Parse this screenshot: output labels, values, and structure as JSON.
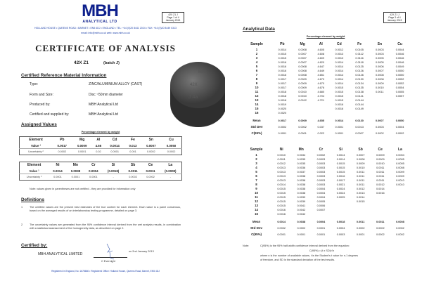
{
  "left": {
    "logo": {
      "name": "MBH",
      "sub": "ANALYTICAL LTD",
      "mark": "®"
    },
    "ref_box": [
      "42X Z1 J",
      "Page 1 of 4",
      "January 2013"
    ],
    "address": "HOLLAND HOUSE • QUEENS ROAD • BARNET • EN5 4DJ • ENGLAND • TEL: +44 (0)20 8441 2024 • FAX: +44 (0)20 8449 0313",
    "contact": "email: info@mbh.co.uk   web: www.mbh.co.uk",
    "title": "CERTIFICATE  OF  ANALYSIS",
    "material": "42X Z1",
    "batch": "(batch J)",
    "crm_heading": "Certified Reference Material Information",
    "info": [
      {
        "label": "Type:",
        "value": "ZINC/ALUMINIUM ALLOY     (CAST)"
      },
      {
        "label": "Form and Size:",
        "value": "Disc ~50mm diameter"
      },
      {
        "label": "Produced by:",
        "value": "MBH Analytical Ltd"
      },
      {
        "label": "Certified and supplied by:",
        "value": "MBH Analytical Ltd"
      }
    ],
    "disc_text": [
      "MBH",
      "42X",
      "J 4a"
    ],
    "assigned_heading": "Assigned Values",
    "pct_caption": "Percentage element by weight",
    "table1": [
      [
        "Element",
        "Pb",
        "Mg",
        "Al",
        "Cd",
        "Fe",
        "Sn",
        "Cu"
      ],
      [
        "Value ¹",
        "0.0017",
        "0.0009",
        "4.66",
        "0.0014",
        "0.013",
        "0.0007",
        "0.0050"
      ],
      [
        "Uncertainty ²",
        "0.0002",
        "0.0001",
        "0.02",
        "0.0001",
        "0.001",
        "0.0002",
        "0.0002"
      ]
    ],
    "table2": [
      [
        "Element",
        "Ni",
        "Mn",
        "Cr",
        "Si",
        "Sb",
        "Ce",
        "La"
      ],
      [
        "Value ¹",
        "0.0014",
        "0.0038",
        "0.0004",
        "(0.0018)",
        "0.0011",
        "0.0011",
        "(0.0008)"
      ],
      [
        "Uncertainty ²",
        "0.0001",
        "0.0001",
        "0.0001",
        "-",
        "0.0002",
        "0.0002",
        "-"
      ]
    ],
    "note": "Note:  values given in parentheses are not certified - they are provided for information only",
    "definitions_heading": "Definitions",
    "definitions": [
      {
        "mark": "1",
        "text": "The certified values are the present best estimates of the true content for each element.  Each value is a panel consensus, based on the averaged results of an interlaboratory testing programme, detailed on page 3."
      },
      {
        "mark": "2",
        "text": "The uncertainty values are generated from the 95% confidence interval derived from the wet analysis results, in combination with a statistical assessement of the homogeneity data, as described on page 2."
      }
    ],
    "certified_heading": "Certified by:",
    "certifier": "MBH  ANALYTICAL  LIMITED",
    "date": "on 2nd January 2013",
    "signatory": "C Evernight",
    "footer": "Registered in England, No: 1678660 • Registered Office: Holland House, Queens Road, Barnet, EN5 4DJ"
  },
  "right": {
    "ref_box": [
      "42X Z1 J",
      "Page 3 of 4",
      "January 2013"
    ],
    "heading": "Analytical Data",
    "pct_caption": "Percentage element by weight",
    "table1": {
      "headers": [
        "Sample",
        "Pb",
        "Mg",
        "Al",
        "Cd",
        "Fe",
        "Sn",
        "Cu"
      ],
      "rows": [
        [
          "1",
          "0.0014",
          "0.0008",
          "4.605",
          "0.0012",
          "0.0105",
          "0.0003",
          "0.0044"
        ],
        [
          "2",
          "0.0015",
          "0.0007",
          "4.608",
          "0.0013",
          "0.0112",
          "0.0003",
          "0.0046"
        ],
        [
          "3",
          "0.0015",
          "0.0007",
          "4.609",
          "0.0013",
          "0.0116",
          "0.0005",
          "0.0046"
        ],
        [
          "4",
          "0.0016",
          "0.0007",
          "4.620",
          "0.0014",
          "0.0118",
          "0.0005",
          "0.0046"
        ],
        [
          "5",
          "0.0016",
          "0.0008",
          "4.647",
          "0.0014",
          "0.0125",
          "0.0006",
          "0.0049"
        ],
        [
          "6",
          "0.0016",
          "0.0008",
          "4.649",
          "0.0014",
          "0.0126",
          "0.0007",
          "0.0050"
        ],
        [
          "7",
          "0.0016",
          "0.0008",
          "4.651",
          "0.0014",
          "0.0126",
          "0.0008",
          "0.0050"
        ],
        [
          "8",
          "0.0017",
          "0.0009",
          "4.670",
          "0.0014",
          "0.0130",
          "0.0008",
          "0.0052"
        ],
        [
          "9",
          "0.0017",
          "0.0009",
          "4.670",
          "0.0014",
          "0.0134",
          "0.0009",
          "0.0052"
        ],
        [
          "10",
          "0.0017",
          "0.0009",
          "4.676",
          "0.0015",
          "0.0135",
          "0.0010",
          "0.0054"
        ],
        [
          "11",
          "0.0018",
          "0.0010",
          "4.680",
          "0.0015",
          "0.0138",
          "0.0011",
          "0.0055"
        ],
        [
          "12",
          "0.0018",
          "0.0010",
          "4.704",
          "0.0015",
          "0.0141",
          "",
          "0.0057"
        ],
        [
          "13",
          "0.0018",
          "0.0012",
          "4.721",
          "0.0015",
          "0.0144",
          "",
          ""
        ],
        [
          "14",
          "0.0019",
          "",
          "",
          "0.0016",
          "0.0144",
          "",
          ""
        ],
        [
          "15",
          "0.0020",
          "",
          "",
          "0.0016",
          "0.0149",
          "",
          ""
        ],
        [
          "16",
          "0.0020",
          "",
          "",
          "",
          "",
          "",
          ""
        ]
      ],
      "mean": [
        "Mean",
        "0.0017",
        "0.0009",
        "4.655",
        "0.0014",
        "0.0130",
        "0.0007",
        "0.0050"
      ],
      "std": [
        "Std Dev",
        "0.0002",
        "0.0002",
        "0.037",
        "0.0001",
        "0.0013",
        "0.0003",
        "0.0004"
      ],
      "ci": [
        "C(95%)",
        "0.0001",
        "0.0001",
        "0.022",
        "0.0001",
        "0.0007",
        "0.0002",
        "0.0002"
      ]
    },
    "table2": {
      "headers": [
        "Sample",
        "Ni",
        "Mn",
        "Cr",
        "Si",
        "Sb",
        "Ce",
        "La"
      ],
      "rows": [
        [
          "1",
          "0.0010",
          "0.0034",
          "0.0002",
          "0.0014",
          "0.0007",
          "0.0009",
          "0.0004"
        ],
        [
          "2",
          "0.0011",
          "0.0035",
          "0.0003",
          "0.0014",
          "0.0008",
          "0.0009",
          "0.0005"
        ],
        [
          "3",
          "0.0012",
          "0.0035",
          "0.0003",
          "0.0015",
          "0.0009",
          "0.0010",
          "0.0005"
        ],
        [
          "4",
          "0.0013",
          "0.0036",
          "0.0003",
          "0.0015",
          "0.0010",
          "0.0011",
          "0.0008"
        ],
        [
          "5",
          "0.0013",
          "0.0037",
          "0.0003",
          "0.0015",
          "0.0011",
          "0.0011",
          "0.0009"
        ],
        [
          "6",
          "0.0013",
          "0.0038",
          "0.0003",
          "0.0016",
          "0.0011",
          "0.0011",
          "0.0009"
        ],
        [
          "7",
          "0.0013",
          "0.0038",
          "0.0003",
          "0.0017",
          "0.0011",
          "0.0011",
          "0.0010"
        ],
        [
          "8",
          "0.0014",
          "0.0038",
          "0.0003",
          "0.0021",
          "0.0011",
          "0.0012",
          "0.0010"
        ],
        [
          "9",
          "0.0015",
          "0.0038",
          "0.0004",
          "0.0024",
          "0.0012",
          "0.0014",
          ""
        ],
        [
          "10",
          "0.0015",
          "0.0038",
          "0.0004",
          "0.0024",
          "0.0013",
          "0.0016",
          ""
        ],
        [
          "11",
          "0.0015",
          "0.0039",
          "0.0004",
          "0.0025",
          "0.0014",
          "",
          ""
        ],
        [
          "12",
          "0.0015",
          "0.0039",
          "0.0005",
          "",
          "0.0015",
          "",
          ""
        ],
        [
          "13",
          "0.0015",
          "0.0041",
          "0.0006",
          "",
          "",
          "",
          ""
        ],
        [
          "14",
          "0.0016",
          "0.0042",
          "0.0007",
          "",
          "",
          "",
          ""
        ],
        [
          "15",
          "0.0016",
          "0.0042",
          "",
          "",
          "",
          "",
          ""
        ]
      ],
      "mean": [
        "Mean",
        "0.0014",
        "0.0038",
        "0.0004",
        "0.0018",
        "0.0011",
        "0.0011",
        "0.0008"
      ],
      "std": [
        "Std Dev",
        "0.0002",
        "0.0002",
        "0.0001",
        "0.0004",
        "0.0002",
        "0.0002",
        "0.0002"
      ],
      "ci": [
        "C(95%)",
        "0.0001",
        "0.0001",
        "0.0001",
        "0.0003",
        "0.0001",
        "0.0002",
        "0.0002"
      ]
    },
    "note_label": "Note:",
    "note_lines": [
      "C(95%) is the 95% half-width confidence interval derived from the equation:",
      "C(95%) = (t x SD)/√n",
      "where n is the number of available values, t is the Student's t value for n-1 degrees",
      "of freedom, and SD is the standard deviation of the test results."
    ]
  }
}
